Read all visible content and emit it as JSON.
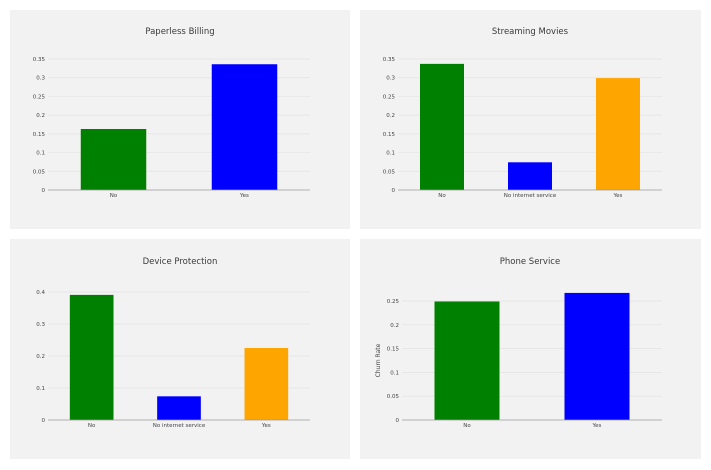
{
  "chart_data": [
    {
      "type": "bar",
      "title": "Paperless Billing",
      "categories": [
        "No",
        "Yes"
      ],
      "values": [
        0.163,
        0.336
      ],
      "colors": [
        "#008000",
        "#0000ff"
      ],
      "ylim": [
        0,
        0.35
      ],
      "yticks": [
        "0",
        "0.05",
        "0.1",
        "0.15",
        "0.2",
        "0.25",
        "0.3",
        "0.35"
      ],
      "ylabel": "",
      "grid": true
    },
    {
      "type": "bar",
      "title": "Streaming Movies",
      "categories": [
        "No",
        "No internet service",
        "Yes"
      ],
      "values": [
        0.337,
        0.074,
        0.299
      ],
      "colors": [
        "#008000",
        "#0000ff",
        "#ffa500"
      ],
      "ylim": [
        0,
        0.35
      ],
      "yticks": [
        "0",
        "0.05",
        "0.1",
        "0.15",
        "0.2",
        "0.25",
        "0.3",
        "0.35"
      ],
      "ylabel": "",
      "grid": true
    },
    {
      "type": "bar",
      "title": "Device Protection",
      "categories": [
        "No",
        "No internet service",
        "Yes"
      ],
      "values": [
        0.391,
        0.074,
        0.225
      ],
      "colors": [
        "#008000",
        "#0000ff",
        "#ffa500"
      ],
      "ylim": [
        0,
        0.4
      ],
      "yticks": [
        "0",
        "0.1",
        "0.2",
        "0.3",
        "0.4"
      ],
      "ylabel": "",
      "grid": true
    },
    {
      "type": "bar",
      "title": "Phone Service",
      "categories": [
        "No",
        "Yes"
      ],
      "values": [
        0.249,
        0.267
      ],
      "colors": [
        "#008000",
        "#0000ff"
      ],
      "ylim": [
        0,
        0.25
      ],
      "yticks": [
        "0",
        "0.05",
        "0.1",
        "0.15",
        "0.2",
        "0.25"
      ],
      "ylabel": "Churn Rate",
      "grid": true
    }
  ]
}
